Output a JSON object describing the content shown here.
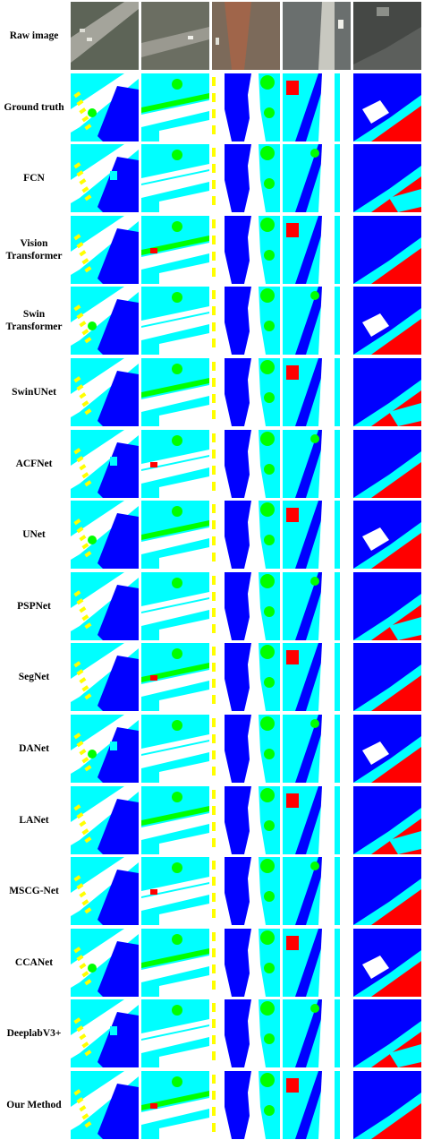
{
  "legend_colors": {
    "impervious_surface": "#ffffff",
    "building": "#0000ff",
    "low_vegetation": "#00ffff",
    "tree": "#00ff00",
    "car": "#ffff00",
    "clutter": "#ff0000",
    "raw_image_tone": "#6e746c"
  },
  "columns": 5,
  "rows": [
    {
      "label": "Raw image",
      "kind": "raw"
    },
    {
      "label": "Ground truth",
      "kind": "seg"
    },
    {
      "label": "FCN",
      "kind": "seg"
    },
    {
      "label": "Vision\nTransformer",
      "kind": "seg"
    },
    {
      "label": "Swin\nTransformer",
      "kind": "seg"
    },
    {
      "label": "SwinUNet",
      "kind": "seg"
    },
    {
      "label": "ACFNet",
      "kind": "seg"
    },
    {
      "label": "UNet",
      "kind": "seg"
    },
    {
      "label": "PSPNet",
      "kind": "seg"
    },
    {
      "label": "SegNet",
      "kind": "seg"
    },
    {
      "label": "DANet",
      "kind": "seg"
    },
    {
      "label": "LANet",
      "kind": "seg"
    },
    {
      "label": "MSCG-Net",
      "kind": "seg"
    },
    {
      "label": "CCANet",
      "kind": "seg"
    },
    {
      "label": "DeeplabV3+",
      "kind": "seg"
    },
    {
      "label": "Our Method",
      "kind": "seg"
    }
  ]
}
